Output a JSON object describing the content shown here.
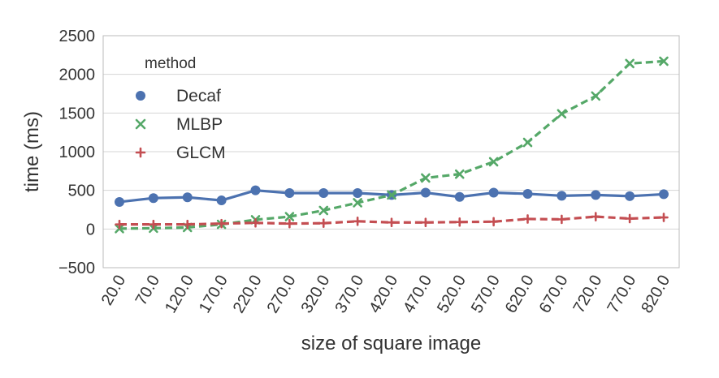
{
  "chart_data": {
    "type": "line",
    "xlabel": "size of square image",
    "ylabel": "time (ms)",
    "ylim": [
      -500,
      2500
    ],
    "yticks": [
      "−500",
      "0",
      "500",
      "1000",
      "1500",
      "2000",
      "2500"
    ],
    "ytick_values": [
      -500,
      0,
      500,
      1000,
      1500,
      2000,
      2500
    ],
    "categories": [
      "20.0",
      "70.0",
      "120.0",
      "170.0",
      "220.0",
      "270.0",
      "320.0",
      "370.0",
      "420.0",
      "470.0",
      "520.0",
      "570.0",
      "620.0",
      "670.0",
      "720.0",
      "770.0",
      "820.0"
    ],
    "grid": true,
    "legend": {
      "title": "method",
      "placement": "top-left"
    },
    "series": [
      {
        "name": "Decaf",
        "color": "#4c72b0",
        "marker": "circle",
        "line": "solid",
        "values": [
          350,
          400,
          410,
          370,
          500,
          465,
          465,
          465,
          440,
          470,
          415,
          470,
          455,
          430,
          440,
          425,
          450
        ]
      },
      {
        "name": "MLBP",
        "color": "#55a868",
        "marker": "x",
        "line": "dashed",
        "values": [
          5,
          10,
          20,
          60,
          120,
          160,
          240,
          340,
          440,
          660,
          710,
          870,
          1120,
          1490,
          1720,
          2140,
          2170
        ]
      },
      {
        "name": "GLCM",
        "color": "#c44e52",
        "marker": "plus",
        "line": "dashed",
        "values": [
          60,
          60,
          60,
          70,
          80,
          70,
          75,
          100,
          85,
          85,
          90,
          95,
          130,
          125,
          160,
          135,
          150
        ]
      }
    ]
  }
}
